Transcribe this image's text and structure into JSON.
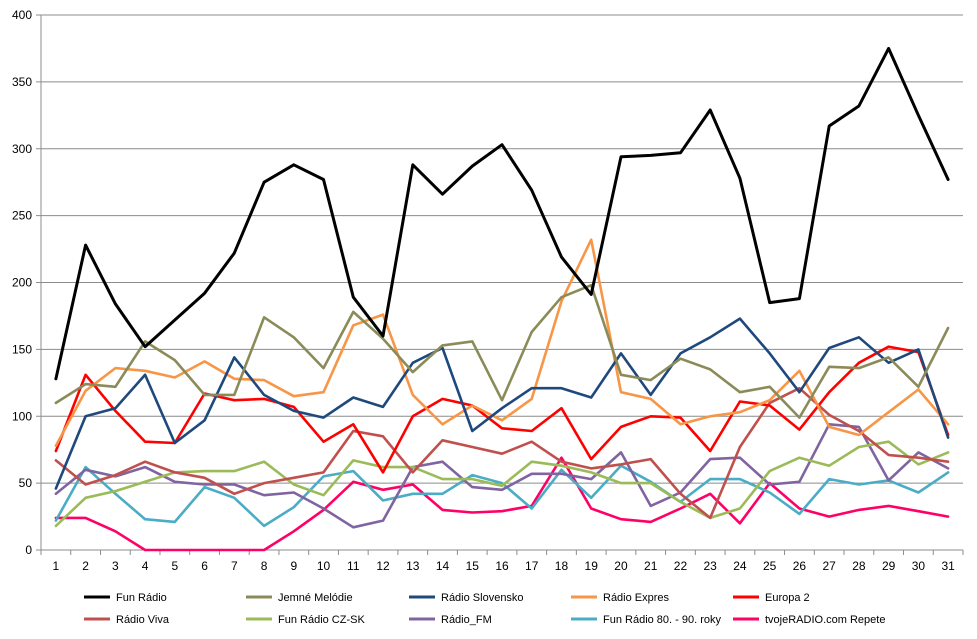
{
  "chart_data": {
    "type": "line",
    "title": "",
    "xlabel": "",
    "ylabel": "",
    "x": [
      1,
      2,
      3,
      4,
      5,
      6,
      7,
      8,
      9,
      10,
      11,
      12,
      13,
      14,
      15,
      16,
      17,
      18,
      19,
      20,
      21,
      22,
      23,
      24,
      25,
      26,
      27,
      28,
      29,
      30,
      31
    ],
    "ylim": [
      0,
      400
    ],
    "yticks": [
      0,
      50,
      100,
      150,
      200,
      250,
      300,
      350,
      400
    ],
    "grid": "horizontal",
    "legend": "bottom",
    "series": [
      {
        "name": "Fun Rádio",
        "color": "#000000",
        "values": [
          128,
          228,
          184,
          152,
          172,
          192,
          222,
          275,
          288,
          277,
          189,
          160,
          288,
          266,
          287,
          303,
          269,
          219,
          191,
          294,
          295,
          297,
          329,
          278,
          185,
          188,
          317,
          332,
          375,
          325,
          277
        ]
      },
      {
        "name": "Jemné Melódie",
        "color": "#8b8b5a",
        "values": [
          110,
          124,
          122,
          156,
          142,
          116,
          116,
          174,
          159,
          136,
          178,
          158,
          133,
          153,
          156,
          112,
          163,
          189,
          198,
          131,
          127,
          143,
          135,
          118,
          122,
          99,
          137,
          136,
          144,
          122,
          166
        ]
      },
      {
        "name": "Rádio Slovensko",
        "color": "#1f497d",
        "values": [
          46,
          100,
          106,
          131,
          80,
          97,
          144,
          116,
          104,
          99,
          114,
          107,
          140,
          151,
          89,
          106,
          121,
          121,
          114,
          147,
          116,
          147,
          159,
          173,
          147,
          118,
          151,
          159,
          140,
          150,
          84
        ]
      },
      {
        "name": "Rádio Expres",
        "color": "#f79646",
        "values": [
          78,
          119,
          136,
          134,
          129,
          141,
          128,
          127,
          115,
          118,
          168,
          176,
          116,
          94,
          108,
          97,
          113,
          186,
          232,
          118,
          113,
          94,
          100,
          103,
          112,
          134,
          92,
          86,
          103,
          120,
          94
        ]
      },
      {
        "name": "Europa 2",
        "color": "#ff0000",
        "values": [
          74,
          131,
          104,
          81,
          80,
          117,
          112,
          113,
          107,
          81,
          94,
          58,
          100,
          113,
          108,
          91,
          89,
          106,
          68,
          92,
          100,
          99,
          74,
          111,
          108,
          90,
          118,
          140,
          152,
          148,
          86
        ]
      },
      {
        "name": "Rádio Viva",
        "color": "#c0504d",
        "values": [
          67,
          49,
          56,
          66,
          58,
          54,
          42,
          50,
          54,
          58,
          89,
          85,
          58,
          82,
          77,
          72,
          81,
          66,
          61,
          64,
          68,
          42,
          24,
          77,
          110,
          121,
          101,
          89,
          71,
          69,
          66
        ]
      },
      {
        "name": "Fun Rádio CZ-SK",
        "color": "#9bbb59",
        "values": [
          18,
          39,
          44,
          51,
          58,
          59,
          59,
          66,
          49,
          41,
          67,
          62,
          62,
          53,
          53,
          48,
          66,
          63,
          58,
          50,
          50,
          36,
          24,
          31,
          59,
          69,
          63,
          77,
          81,
          64,
          73
        ]
      },
      {
        "name": "Rádio_FM",
        "color": "#8064a2",
        "values": [
          42,
          60,
          55,
          62,
          51,
          49,
          49,
          41,
          43,
          31,
          17,
          22,
          62,
          66,
          47,
          45,
          57,
          57,
          53,
          73,
          33,
          43,
          68,
          69,
          49,
          51,
          94,
          92,
          52,
          73,
          61
        ]
      },
      {
        "name": "Fun Rádio 80. - 90. roky",
        "color": "#4bacc6",
        "values": [
          22,
          62,
          42,
          23,
          21,
          47,
          39,
          18,
          32,
          55,
          59,
          37,
          42,
          42,
          56,
          50,
          31,
          60,
          39,
          63,
          51,
          36,
          53,
          53,
          43,
          27,
          53,
          49,
          52,
          43,
          58
        ]
      },
      {
        "name": "tvojeRADIO.com Repete",
        "color": "#ff0066",
        "values": [
          24,
          24,
          14,
          0,
          0,
          0,
          0,
          0,
          14,
          30,
          51,
          45,
          49,
          30,
          28,
          29,
          33,
          69,
          31,
          23,
          21,
          31,
          42,
          20,
          50,
          31,
          25,
          30,
          33,
          29,
          25
        ]
      }
    ]
  }
}
